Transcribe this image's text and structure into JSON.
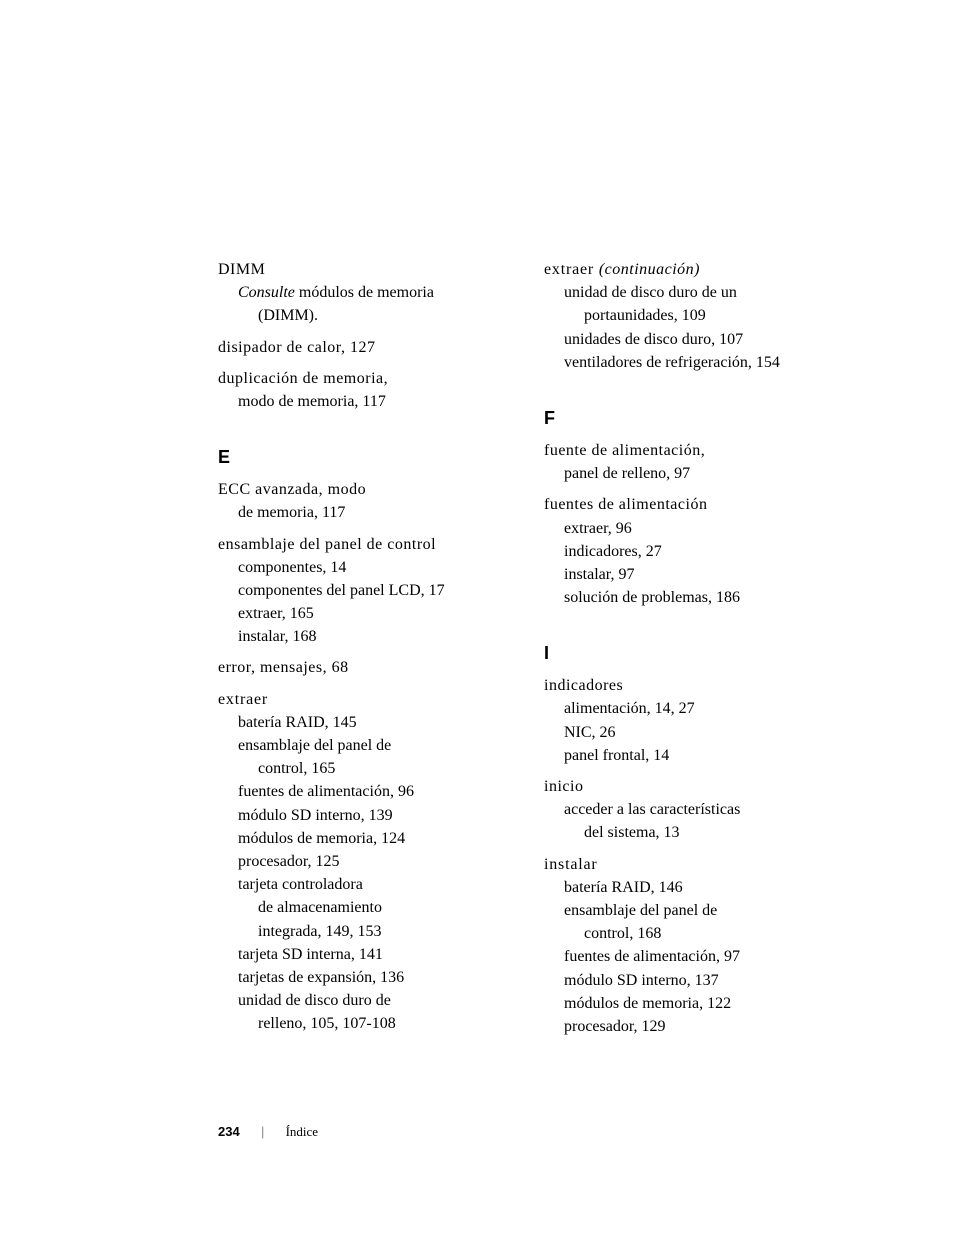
{
  "left": {
    "dimm": {
      "head": "DIMM",
      "sub1_pre": "Consulte",
      "sub1_post": " módulos de memoria",
      "sub2": "(DIMM)."
    },
    "disipador": "disipador de calor, 127",
    "duplicacion": {
      "l1": "duplicación de memoria,",
      "l2": "modo de memoria, 117"
    },
    "letter_e": "E",
    "ecc": {
      "l1": "ECC avanzada, modo",
      "l2": "de memoria, 117"
    },
    "ensamblaje": {
      "head": "ensamblaje del panel de control",
      "s1": "componentes, 14",
      "s2": "componentes del panel LCD, 17",
      "s3": "extraer, 165",
      "s4": "instalar, 168"
    },
    "error": "error, mensajes, 68",
    "extraer": {
      "head": "extraer",
      "s1": "batería RAID, 145",
      "s2a": "ensamblaje del panel de",
      "s2b": "control, 165",
      "s3": "fuentes de alimentación, 96",
      "s4": "módulo SD interno, 139",
      "s5": "módulos de memoria, 124",
      "s6": "procesador, 125",
      "s7a": "tarjeta controladora",
      "s7b": "de almacenamiento",
      "s7c": "integrada, 149, 153",
      "s8": "tarjeta SD interna, 141",
      "s9": "tarjetas de expansión, 136",
      "s10a": "unidad de disco duro de",
      "s10b": "relleno, 105, 107-108"
    }
  },
  "right": {
    "extraer_cont": {
      "head_pre": "extraer ",
      "head_ital": "(continuación)",
      "s1a": "unidad de disco duro de un",
      "s1b": "portaunidades, 109",
      "s2": "unidades de disco duro, 107",
      "s3": "ventiladores de refrigeración, 154"
    },
    "letter_f": "F",
    "fuente_singular": {
      "l1": "fuente de alimentación,",
      "l2": "panel de relleno, 97"
    },
    "fuentes": {
      "head": "fuentes de alimentación",
      "s1": "extraer, 96",
      "s2": "indicadores, 27",
      "s3": "instalar, 97",
      "s4": "solución de problemas, 186"
    },
    "letter_i": "I",
    "indicadores": {
      "head": "indicadores",
      "s1": "alimentación, 14, 27",
      "s2": "NIC, 26",
      "s3": "panel frontal, 14"
    },
    "inicio": {
      "head": "inicio",
      "s1a": "acceder a las características",
      "s1b": "del sistema, 13"
    },
    "instalar": {
      "head": "instalar",
      "s1": "batería RAID, 146",
      "s2a": "ensamblaje del panel de",
      "s2b": "control, 168",
      "s3": "fuentes de alimentación, 97",
      "s4": "módulo SD interno, 137",
      "s5": "módulos de memoria, 122",
      "s6": "procesador, 129"
    }
  },
  "footer": {
    "page": "234",
    "sep": "|",
    "label": "Índice"
  }
}
